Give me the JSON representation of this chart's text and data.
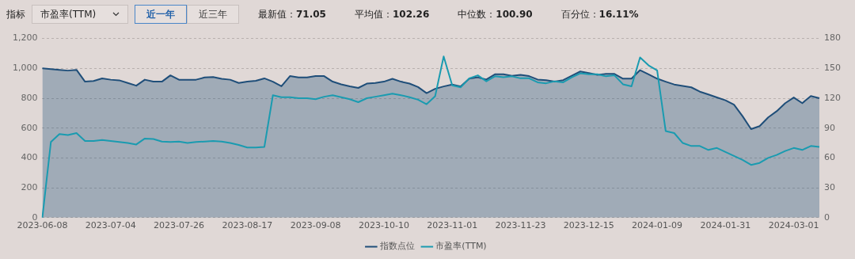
{
  "chart_data": {
    "type": "area",
    "annotations": [
      "指标",
      "市盈率(TTM)",
      "近一年",
      "近三年",
      "最新值：71.05",
      "平均值：102.26",
      "中位数：100.90",
      "百分位：16.11%"
    ],
    "categories": [
      "2023-06-08",
      null,
      null,
      null,
      null,
      null,
      null,
      null,
      "2023-07-04",
      null,
      null,
      null,
      null,
      null,
      null,
      null,
      "2023-07-26",
      null,
      null,
      null,
      null,
      null,
      null,
      null,
      "2023-08-17",
      null,
      null,
      null,
      null,
      null,
      null,
      null,
      "2023-09-08",
      null,
      null,
      null,
      null,
      null,
      null,
      null,
      "2023-10-10",
      null,
      null,
      null,
      null,
      null,
      null,
      null,
      "2023-11-01",
      null,
      null,
      null,
      null,
      null,
      null,
      null,
      "2023-11-23",
      null,
      null,
      null,
      null,
      null,
      null,
      null,
      "2023-12-15",
      null,
      null,
      null,
      null,
      null,
      null,
      null,
      "2024-01-09",
      null,
      null,
      null,
      null,
      null,
      null,
      null,
      "2024-01-31",
      null,
      null,
      null,
      null,
      null,
      null,
      null,
      "2024-03-01",
      null,
      null,
      null
    ],
    "series": [
      {
        "name": "指数点位",
        "color": "#1f4e79",
        "values": [
          1000,
          995,
          990,
          985,
          990,
          911,
          915,
          933,
          924,
          920,
          902,
          884,
          924,
          911,
          911,
          953,
          924,
          924,
          924,
          939,
          942,
          930,
          924,
          902,
          911,
          917,
          933,
          911,
          880,
          948,
          939,
          939,
          948,
          948,
          911,
          893,
          880,
          869,
          898,
          902,
          911,
          930,
          911,
          898,
          875,
          834,
          863,
          879,
          892,
          879,
          931,
          940,
          925,
          960,
          960,
          950,
          956,
          948,
          925,
          921,
          911,
          921,
          950,
          979,
          969,
          956,
          963,
          963,
          931,
          931,
          988,
          960,
          931,
          911,
          892,
          882,
          873,
          844,
          825,
          805,
          786,
          757,
          680,
          593,
          613,
          671,
          713,
          767,
          805,
          767,
          815,
          800
        ]
      },
      {
        "name": "市盈率(TTM)",
        "type": "line",
        "axis": "y2",
        "color": "#1a9bb0",
        "values": [
          0,
          76,
          84,
          83,
          85,
          77,
          77,
          78,
          77,
          76,
          75,
          73.5,
          79.5,
          79,
          76.5,
          76,
          76.5,
          75,
          76,
          76.5,
          77,
          76.5,
          75,
          73,
          70.5,
          70.5,
          71,
          123,
          121,
          121,
          120,
          120,
          119,
          121.5,
          123,
          121,
          119,
          116,
          120,
          121.5,
          123,
          124.5,
          123,
          121,
          118.5,
          114,
          122,
          162,
          133,
          131,
          140,
          143,
          137,
          142,
          141,
          142,
          140,
          140,
          136,
          135,
          137,
          136,
          141,
          145,
          144,
          144,
          142,
          143,
          134,
          132,
          161,
          153,
          148,
          87,
          85,
          75,
          72,
          72,
          68,
          70,
          66,
          62,
          58,
          53,
          55,
          60,
          63,
          67,
          70,
          68,
          72,
          71
        ]
      }
    ],
    "ylim": [
      0,
      1200
    ],
    "yticks": [
      0,
      {
        "value": 200,
        "label": "200"
      },
      {
        "value": 400,
        "label": "400"
      },
      {
        "value": 600,
        "label": "600"
      },
      {
        "value": 800,
        "label": "800"
      },
      {
        "value": 1000,
        "label": "1,000"
      },
      {
        "value": 1200,
        "label": "1,200"
      }
    ],
    "y2lim": [
      0,
      180
    ],
    "y2ticks": [
      0,
      30,
      60,
      90,
      120,
      150,
      180
    ],
    "grid": "y",
    "legend": "bottom",
    "marker": "none"
  }
}
